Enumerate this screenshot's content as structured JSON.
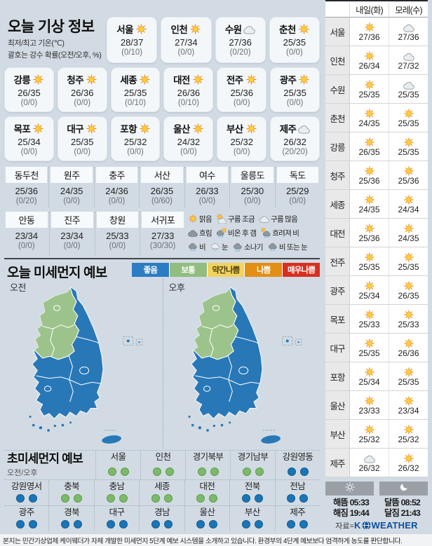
{
  "page": {
    "footer": "본지는 민간기상업체 케이웨더가 자체 개발한 미세먼지 5단계 예보 시스템을 소개하고 있습니다. 환경부의 4단계 예보보다 엄격하게 농도를 판단합니다."
  },
  "today": {
    "title": "오늘 기상 정보",
    "subtitle1": "최저/최고 기온(℃)",
    "subtitle2": "괄호는 강수 확률(오전/오후, %)",
    "cards_row1": [
      {
        "name": "서울",
        "icon": "sun",
        "temp": "28/37",
        "prob": "(0/10)"
      },
      {
        "name": "인천",
        "icon": "sun",
        "temp": "27/34",
        "prob": "(0/0)"
      },
      {
        "name": "수원",
        "icon": "cloud",
        "temp": "27/36",
        "prob": "(0/20)"
      },
      {
        "name": "춘천",
        "icon": "sun",
        "temp": "25/35",
        "prob": "(0/0)"
      }
    ],
    "cards_row2": [
      {
        "name": "강릉",
        "icon": "sun",
        "temp": "26/35",
        "prob": "(0/0)"
      },
      {
        "name": "청주",
        "icon": "sun",
        "temp": "26/36",
        "prob": "(0/0)"
      },
      {
        "name": "세종",
        "icon": "sun",
        "temp": "25/35",
        "prob": "(0/10)"
      },
      {
        "name": "대전",
        "icon": "sun",
        "temp": "26/36",
        "prob": "(0/10)"
      },
      {
        "name": "전주",
        "icon": "sun",
        "temp": "25/36",
        "prob": "(0/0)"
      },
      {
        "name": "광주",
        "icon": "sun",
        "temp": "25/35",
        "prob": "(0/0)"
      }
    ],
    "cards_row3": [
      {
        "name": "목포",
        "icon": "sun",
        "temp": "25/34",
        "prob": "(0/0)"
      },
      {
        "name": "대구",
        "icon": "sun",
        "temp": "25/35",
        "prob": "(0/0)"
      },
      {
        "name": "포항",
        "icon": "sun",
        "temp": "25/32",
        "prob": "(0/0)"
      },
      {
        "name": "울산",
        "icon": "sun",
        "temp": "24/32",
        "prob": "(0/0)"
      },
      {
        "name": "부산",
        "icon": "sun",
        "temp": "25/32",
        "prob": "(0/0)"
      },
      {
        "name": "제주",
        "icon": "cloud",
        "temp": "26/32",
        "prob": "(20/20)"
      }
    ],
    "table_row1": [
      {
        "name": "동두천",
        "temp": "25/36",
        "prob": "(0/20)"
      },
      {
        "name": "원주",
        "temp": "24/35",
        "prob": "(0/0)"
      },
      {
        "name": "충주",
        "temp": "24/36",
        "prob": "(0/0)"
      },
      {
        "name": "서산",
        "temp": "26/35",
        "prob": "(0/60)"
      },
      {
        "name": "여수",
        "temp": "26/33",
        "prob": "(0/0)"
      },
      {
        "name": "울릉도",
        "temp": "25/30",
        "prob": "(0/0)"
      },
      {
        "name": "독도",
        "temp": "25/29",
        "prob": "(0/0)"
      }
    ],
    "table_row2": [
      {
        "name": "안동",
        "temp": "23/34",
        "prob": "(0/0)"
      },
      {
        "name": "진주",
        "temp": "23/34",
        "prob": "(0/0)"
      },
      {
        "name": "창원",
        "temp": "25/33",
        "prob": "(0/0)"
      },
      {
        "name": "서귀포",
        "temp": "27/33",
        "prob": "(30/30)"
      }
    ],
    "legend_rows": [
      [
        {
          "icon": "sun",
          "label": "맑음"
        },
        {
          "icon": "sun-cloud",
          "label": "구름 조금"
        },
        {
          "icon": "cloud",
          "label": "구름 많음"
        }
      ],
      [
        {
          "icon": "cloud-dark",
          "label": "흐림"
        },
        {
          "icon": "rain-sun",
          "label": "비온 후 갬"
        },
        {
          "icon": "sun-rain",
          "label": "흐려져 비"
        }
      ],
      [
        {
          "icon": "rain",
          "label": "비"
        },
        {
          "icon": "snow",
          "label": "눈"
        },
        {
          "icon": "shower",
          "label": "소나기"
        },
        {
          "icon": "rain-snow",
          "label": "비 또는 눈"
        }
      ]
    ]
  },
  "dust": {
    "title": "오늘 미세먼지 예보",
    "levels": [
      {
        "label": "좋음",
        "color": "#2c7cc3",
        "text": "#ffffff"
      },
      {
        "label": "보통",
        "color": "#92bd80",
        "text": "#ffffff"
      },
      {
        "label": "약간나쁨",
        "color": "#f2d35f",
        "text": "#4a3f10"
      },
      {
        "label": "나쁨",
        "color": "#e28f14",
        "text": "#ffffff"
      },
      {
        "label": "매우나쁨",
        "color": "#d92f1f",
        "text": "#ffffff"
      }
    ],
    "maps": [
      {
        "label": "오전"
      },
      {
        "label": "오후"
      }
    ],
    "map_colors": {
      "good": "#2878b8",
      "normal": "#9cc38b"
    }
  },
  "ultrafine": {
    "title": "초미세먼지 예보",
    "subtitle": "오전/오후",
    "dot_colors": {
      "good": {
        "fill": "#1b75b5",
        "stroke": "#135d92"
      },
      "normal": {
        "fill": "#7cb96a",
        "stroke": "#5d9e4e"
      }
    },
    "row1": [
      {
        "name": "서울",
        "am": "normal",
        "pm": "normal"
      },
      {
        "name": "인천",
        "am": "normal",
        "pm": "normal"
      },
      {
        "name": "경기북부",
        "am": "normal",
        "pm": "normal"
      },
      {
        "name": "경기남부",
        "am": "normal",
        "pm": "normal"
      },
      {
        "name": "강원영동",
        "am": "good",
        "pm": "good"
      }
    ],
    "row2": [
      {
        "name": "강원영서",
        "am": "good",
        "pm": "good"
      },
      {
        "name": "충북",
        "am": "normal",
        "pm": "normal"
      },
      {
        "name": "충남",
        "am": "normal",
        "pm": "normal"
      },
      {
        "name": "세종",
        "am": "normal",
        "pm": "normal"
      },
      {
        "name": "대전",
        "am": "normal",
        "pm": "normal"
      },
      {
        "name": "전북",
        "am": "good",
        "pm": "good"
      },
      {
        "name": "전남",
        "am": "good",
        "pm": "good"
      }
    ],
    "row3": [
      {
        "name": "광주",
        "am": "good",
        "pm": "good"
      },
      {
        "name": "경북",
        "am": "good",
        "pm": "good"
      },
      {
        "name": "대구",
        "am": "good",
        "pm": "good"
      },
      {
        "name": "경남",
        "am": "good",
        "pm": "good"
      },
      {
        "name": "울산",
        "am": "good",
        "pm": "good"
      },
      {
        "name": "부산",
        "am": "good",
        "pm": "good"
      },
      {
        "name": "제주",
        "am": "good",
        "pm": "good"
      }
    ]
  },
  "tomorrow": {
    "col1": "내일(화)",
    "col2": "모레(수)",
    "rows": [
      {
        "name": "서울",
        "d1": {
          "icon": "sun",
          "temp": "27/36"
        },
        "d2": {
          "icon": "cloud",
          "temp": "27/36"
        }
      },
      {
        "name": "인천",
        "d1": {
          "icon": "sun",
          "temp": "26/34"
        },
        "d2": {
          "icon": "cloud",
          "temp": "27/32"
        }
      },
      {
        "name": "수원",
        "d1": {
          "icon": "sun",
          "temp": "25/35"
        },
        "d2": {
          "icon": "cloud",
          "temp": "25/35"
        }
      },
      {
        "name": "춘천",
        "d1": {
          "icon": "sun",
          "temp": "24/35"
        },
        "d2": {
          "icon": "sun",
          "temp": "25/35"
        }
      },
      {
        "name": "강릉",
        "d1": {
          "icon": "sun",
          "temp": "26/35"
        },
        "d2": {
          "icon": "sun",
          "temp": "25/35"
        }
      },
      {
        "name": "청주",
        "d1": {
          "icon": "sun",
          "temp": "25/36"
        },
        "d2": {
          "icon": "sun",
          "temp": "25/36"
        }
      },
      {
        "name": "세종",
        "d1": {
          "icon": "sun",
          "temp": "24/35"
        },
        "d2": {
          "icon": "sun",
          "temp": "24/34"
        }
      },
      {
        "name": "대전",
        "d1": {
          "icon": "sun",
          "temp": "25/36"
        },
        "d2": {
          "icon": "sun",
          "temp": "24/35"
        }
      },
      {
        "name": "전주",
        "d1": {
          "icon": "sun",
          "temp": "25/35"
        },
        "d2": {
          "icon": "sun",
          "temp": "25/35"
        }
      },
      {
        "name": "광주",
        "d1": {
          "icon": "sun",
          "temp": "25/34"
        },
        "d2": {
          "icon": "sun",
          "temp": "26/35"
        }
      },
      {
        "name": "목포",
        "d1": {
          "icon": "sun",
          "temp": "25/33"
        },
        "d2": {
          "icon": "sun",
          "temp": "25/33"
        }
      },
      {
        "name": "대구",
        "d1": {
          "icon": "sun",
          "temp": "25/35"
        },
        "d2": {
          "icon": "sun",
          "temp": "26/36"
        }
      },
      {
        "name": "포항",
        "d1": {
          "icon": "sun",
          "temp": "25/34"
        },
        "d2": {
          "icon": "sun",
          "temp": "25/35"
        }
      },
      {
        "name": "울산",
        "d1": {
          "icon": "sun",
          "temp": "23/33"
        },
        "d2": {
          "icon": "sun",
          "temp": "23/34"
        }
      },
      {
        "name": "부산",
        "d1": {
          "icon": "sun",
          "temp": "25/32"
        },
        "d2": {
          "icon": "sun",
          "temp": "25/32"
        }
      },
      {
        "name": "제주",
        "d1": {
          "icon": "cloud",
          "temp": "26/32"
        },
        "d2": {
          "icon": "sun",
          "temp": "26/32"
        }
      }
    ],
    "sun": {
      "rise_label": "해뜸",
      "rise": "05:33",
      "set_label": "해짐",
      "set": "19:44"
    },
    "moon": {
      "rise_label": "달뜸",
      "rise": "08:52",
      "set_label": "달짐",
      "set": "21:43"
    },
    "source_label": "자료=",
    "brand_k": "K",
    "brand_rest": "WEATHER"
  }
}
